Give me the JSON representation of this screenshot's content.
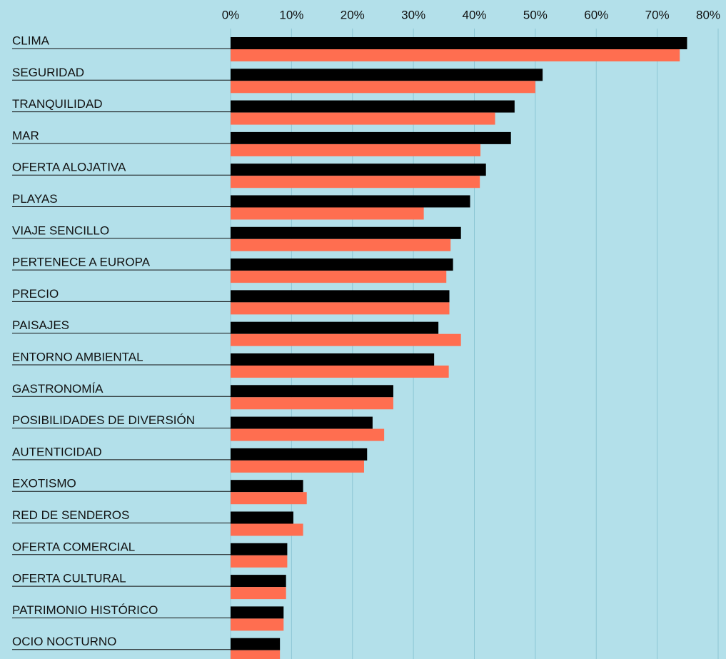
{
  "chart_data": {
    "type": "bar",
    "orientation": "horizontal",
    "categories": [
      "CLIMA",
      "SEGURIDAD",
      "TRANQUILIDAD",
      "MAR",
      "OFERTA ALOJATIVA",
      "PLAYAS",
      "VIAJE SENCILLO",
      "PERTENECE A EUROPA",
      "PRECIO",
      "PAISAJES",
      "ENTORNO AMBIENTAL",
      "GASTRONOMÍA",
      "POSIBILIDADES DE DIVERSIÓN",
      "AUTENTICIDAD",
      "EXOTISMO",
      "RED DE SENDEROS",
      "OFERTA COMERCIAL",
      "OFERTA CULTURAL",
      "PATRIMONIO HISTÓRICO",
      "OCIO NOCTURNO"
    ],
    "series": [
      {
        "color": "#000000",
        "values": [
          74.9,
          51.2,
          46.6,
          46.0,
          41.9,
          39.3,
          37.8,
          36.5,
          35.9,
          34.1,
          33.4,
          26.7,
          23.3,
          22.4,
          11.9,
          10.3,
          9.3,
          9.1,
          8.7,
          8.1
        ]
      },
      {
        "color": "#ff6e50",
        "values": [
          73.7,
          50.0,
          43.4,
          41.0,
          40.9,
          31.7,
          36.1,
          35.4,
          35.9,
          37.8,
          35.8,
          26.7,
          25.2,
          21.9,
          12.5,
          11.9,
          9.3,
          9.1,
          8.7,
          8.1
        ]
      }
    ],
    "xlim": [
      0,
      80
    ],
    "xticks": [
      {
        "value": 0,
        "label": "0%"
      },
      {
        "value": 10,
        "label": "10%"
      },
      {
        "value": 20,
        "label": "20%"
      },
      {
        "value": 30,
        "label": "30%"
      },
      {
        "value": 40,
        "label": "40%"
      },
      {
        "value": 50,
        "label": "50%"
      },
      {
        "value": 60,
        "label": "60%"
      },
      {
        "value": 70,
        "label": "70%"
      },
      {
        "value": 80,
        "label": "80%"
      }
    ],
    "grid": true
  }
}
